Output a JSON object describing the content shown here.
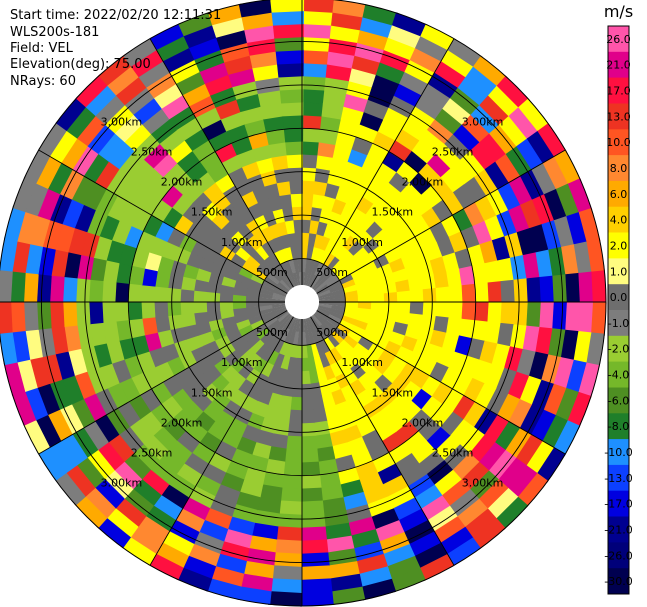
{
  "header": {
    "start_time": "Start time: 2022/02/20 12:11:31",
    "instrument": "WLS200s-181",
    "field": "Field: VEL",
    "elevation": "Elevation(deg): 75.00",
    "nrays": "NRays: 60"
  },
  "chart_data": {
    "type": "heatmap",
    "projection": "polar-ppi",
    "field": "VEL",
    "unit": "m/s",
    "nrays": 60,
    "range_rings": [
      {
        "km": 0.5,
        "label": "500m"
      },
      {
        "km": 1.0,
        "label": "1.00km"
      },
      {
        "km": 1.5,
        "label": "1.50km"
      },
      {
        "km": 2.0,
        "label": "2.00km"
      },
      {
        "km": 2.5,
        "label": "2.50km"
      },
      {
        "km": 3.0,
        "label": "3.00km"
      }
    ],
    "max_range_km": 3.5,
    "spoke_angles_deg": [
      0,
      30,
      60,
      90,
      120,
      150,
      180,
      210,
      240,
      270,
      300,
      330
    ],
    "colorbar": {
      "labels": [
        "26.0",
        "21.0",
        "17.0",
        "13.0",
        "10.0",
        "8.0",
        "6.0",
        "4.0",
        "2.0",
        "1.0",
        "0.0",
        "-1.0",
        "-2.0",
        "-4.0",
        "-6.0",
        "-8.0",
        "-10.0",
        "-13.0",
        "-17.0",
        "-21.0",
        "-26.0",
        "-30.0"
      ],
      "colors": [
        "#ff55aa",
        "#e0008a",
        "#ff1040",
        "#ee3322",
        "#ff5522",
        "#ff8830",
        "#ffaa00",
        "#ffd000",
        "#ffff00",
        "#fffc80",
        "#6e6e6e",
        "#7d7d7d",
        "#9acd32",
        "#75b82a",
        "#4e8f22",
        "#1f7f2a",
        "#1e90ff",
        "#0c40ff",
        "#0000e0",
        "#000090",
        "#00007a",
        "#000050"
      ]
    },
    "regions": [
      {
        "from_km": 0.0,
        "to_km": 0.5,
        "desc": "grey near-zero core"
      },
      {
        "from_km": 0.5,
        "to_km": 1.75,
        "desc": "east yellow 2 to 4 m/s, west grey/green -1 to -4 m/s"
      },
      {
        "from_km": 1.75,
        "to_km": 2.6,
        "desc": "mixed yellow-grey / green transitions"
      },
      {
        "from_km": 2.6,
        "to_km": 3.5,
        "desc": "aliased noise, full colour range"
      }
    ]
  }
}
